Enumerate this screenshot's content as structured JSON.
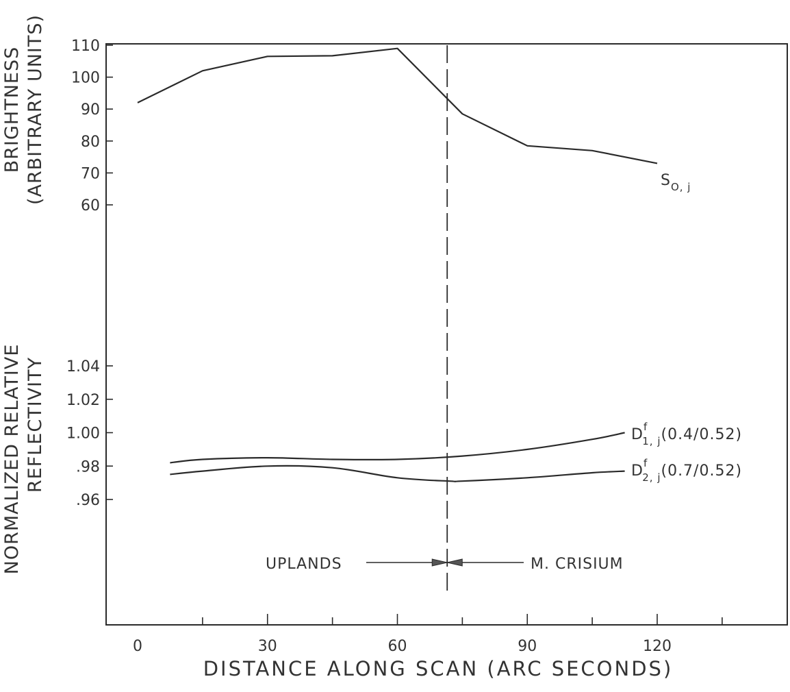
{
  "chart_data": {
    "type": "line",
    "xlabel": "DISTANCE ALONG SCAN (ARC SECONDS)",
    "x_ticks": [
      "0",
      "30",
      "60",
      "90",
      "120"
    ],
    "xlim": [
      0,
      150
    ],
    "panels": [
      {
        "ylabel": [
          "BRIGHTNESS",
          "(ARBITRARY UNITS)"
        ],
        "y_ticks": [
          "60",
          "70",
          "80",
          "90",
          "100",
          "110"
        ],
        "ylim": [
          60,
          110
        ],
        "series": [
          {
            "name": "S0,j",
            "label_main": "S",
            "label_sub": "O, j",
            "x": [
              0,
              15,
              30,
              45,
              60,
              75,
              90,
              105,
              120
            ],
            "y": [
              92,
              102,
              106.5,
              106.7,
              109,
              88.5,
              78.5,
              77,
              73
            ]
          }
        ]
      },
      {
        "ylabel": [
          "NORMALIZED RELATIVE",
          "REFLECTIVITY"
        ],
        "y_ticks": [
          ".96",
          ".98",
          "1.00",
          "1.02",
          "1.04"
        ],
        "ylim": [
          0.96,
          1.04
        ],
        "series": [
          {
            "name": "Df1,j(0.4/0.52)",
            "label_main": "D",
            "label_sup": "f",
            "label_sub": "1, j",
            "label_suffix": "(0.4/0.52)",
            "x": [
              7.5,
              15,
              30,
              45,
              60,
              75,
              90,
              105,
              112.5
            ],
            "y": [
              0.982,
              0.984,
              0.985,
              0.984,
              0.984,
              0.986,
              0.99,
              0.996,
              1.0
            ]
          },
          {
            "name": "Df2,j(0.7/0.52)",
            "label_main": "D",
            "label_sup": "f",
            "label_sub": "2, j",
            "label_suffix": "(0.7/0.52)",
            "x": [
              7.5,
              15,
              30,
              45,
              60,
              72,
              75,
              90,
              105,
              112.5
            ],
            "y": [
              0.975,
              0.977,
              0.98,
              0.979,
              0.973,
              0.971,
              0.971,
              0.973,
              0.976,
              0.977
            ]
          }
        ]
      }
    ],
    "boundary": {
      "x": 71.5,
      "left_label": "UPLANDS",
      "right_label": "M. CRISIUM"
    }
  }
}
